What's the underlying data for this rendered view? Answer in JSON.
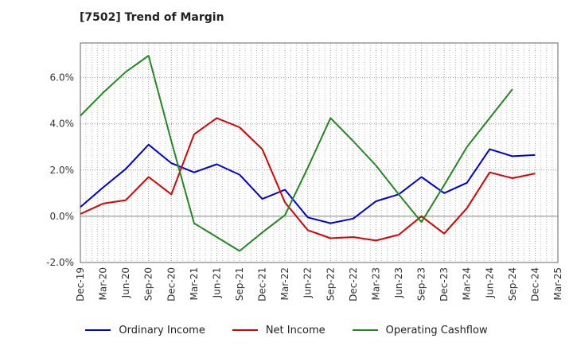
{
  "chart_data": {
    "type": "line",
    "title": "[7502]  Trend of Margin",
    "xlabel": "",
    "ylabel": "",
    "x": [
      "Dec-19",
      "Mar-20",
      "Jun-20",
      "Sep-20",
      "Dec-20",
      "Mar-21",
      "Jun-21",
      "Sep-21",
      "Dec-21",
      "Mar-22",
      "Jun-22",
      "Sep-22",
      "Dec-22",
      "Mar-23",
      "Jun-23",
      "Sep-23",
      "Dec-23",
      "Mar-24",
      "Jun-24",
      "Sep-24",
      "Dec-24",
      "Mar-25"
    ],
    "y_ticks": [
      6.0,
      4.0,
      2.0,
      0.0,
      -2.0
    ],
    "y_tick_labels": [
      "6.0%",
      "4.0%",
      "2.0%",
      "0.0%",
      "-2.0%"
    ],
    "ylim": [
      -2.0,
      7.5
    ],
    "grid": true,
    "legend_position": "bottom",
    "series": [
      {
        "name": "Ordinary Income",
        "color": "#0000dd",
        "values": [
          0.4,
          1.25,
          2.05,
          3.1,
          2.3,
          1.9,
          2.25,
          1.8,
          0.75,
          1.15,
          -0.05,
          -0.3,
          -0.1,
          0.65,
          0.95,
          1.7,
          1.0,
          1.45,
          2.9,
          2.6,
          2.65,
          null
        ]
      },
      {
        "name": "Net Income",
        "color": "#dd0000",
        "values": [
          0.1,
          0.55,
          0.7,
          1.7,
          0.95,
          3.55,
          4.25,
          3.85,
          2.9,
          0.6,
          -0.6,
          -0.95,
          -0.9,
          -1.05,
          -0.8,
          0.0,
          -0.75,
          0.35,
          1.9,
          1.65,
          1.85,
          null
        ]
      },
      {
        "name": "Operating Cashflow",
        "color": "#228822",
        "values": [
          4.35,
          5.35,
          6.25,
          6.95,
          3.25,
          -0.3,
          -0.9,
          -1.5,
          -0.7,
          0.05,
          2.1,
          4.25,
          3.25,
          2.2,
          0.95,
          -0.25,
          1.35,
          3.0,
          4.25,
          5.5,
          null,
          null
        ]
      }
    ]
  }
}
